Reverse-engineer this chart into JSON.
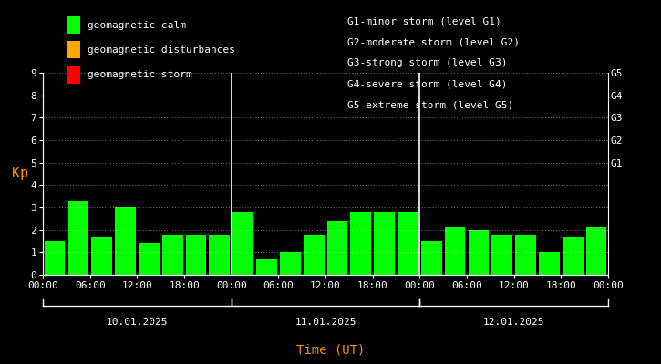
{
  "background_color": "#000000",
  "plot_bg_color": "#000000",
  "bar_color_calm": "#00ff00",
  "bar_color_disturb": "#ffa500",
  "bar_color_storm": "#ff0000",
  "axis_color": "#ffffff",
  "grid_color": "#ffffff",
  "text_color": "#ffffff",
  "kp_ylabel": "Kp",
  "kp_ylabel_color": "#ff8c00",
  "xlabel": "Time (UT)",
  "xlabel_color": "#ff8c00",
  "ylim": [
    0,
    9
  ],
  "yticks": [
    0,
    1,
    2,
    3,
    4,
    5,
    6,
    7,
    8,
    9
  ],
  "days": [
    "10.01.2025",
    "11.01.2025",
    "12.01.2025"
  ],
  "kp_values": [
    [
      1.5,
      3.3,
      1.7,
      3.0,
      1.4,
      1.8,
      1.8,
      1.8
    ],
    [
      2.8,
      0.7,
      1.0,
      1.8,
      2.4,
      2.8,
      2.8,
      2.8
    ],
    [
      1.5,
      2.1,
      2.0,
      1.8,
      1.8,
      1.0,
      1.7,
      2.1
    ]
  ],
  "n_bars_per_day": 8,
  "legend_items": [
    {
      "label": "geomagnetic calm",
      "color": "#00ff00"
    },
    {
      "label": "geomagnetic disturbances",
      "color": "#ffa500"
    },
    {
      "label": "geomagnetic storm",
      "color": "#ff0000"
    }
  ],
  "right_legend_lines": [
    "G1-minor storm (level G1)",
    "G2-moderate storm (level G2)",
    "G3-strong storm (level G3)",
    "G4-severe storm (level G4)",
    "G5-extreme storm (level G5)"
  ],
  "xtick_labels_per_day": [
    "00:00",
    "06:00",
    "12:00",
    "18:00"
  ],
  "right_ytick_positions": [
    5,
    6,
    7,
    8,
    9
  ],
  "right_ytick_labels": [
    "G1",
    "G2",
    "G3",
    "G4",
    "G5"
  ],
  "font_family": "monospace",
  "font_size": 8,
  "font_size_legend": 8,
  "font_size_ylabel": 11,
  "font_size_xlabel": 10
}
